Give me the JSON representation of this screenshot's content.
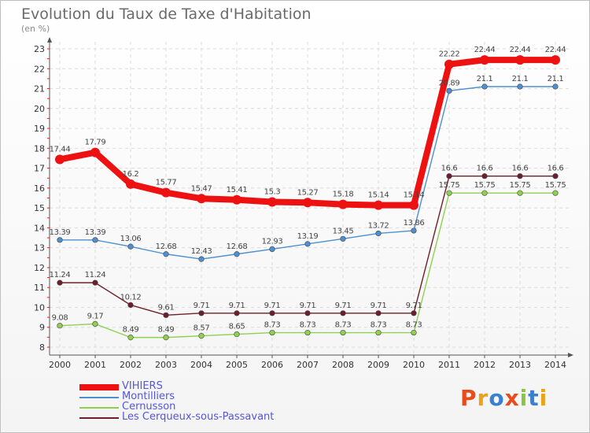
{
  "title": "Evolution du Taux de Taxe d'Habitation",
  "subtitle": "(en %)",
  "brand": {
    "text": "Proxiti",
    "letter_colors": [
      "#e84c1c",
      "#e8a21c",
      "#3a7fd0",
      "#e84c1c",
      "#8bc53f",
      "#3a7fd0",
      "#e8a21c"
    ]
  },
  "chart_data": {
    "type": "line",
    "x": [
      "2000",
      "2001",
      "2002",
      "2003",
      "2004",
      "2005",
      "2006",
      "2007",
      "2008",
      "2009",
      "2010",
      "2011",
      "2012",
      "2013",
      "2014"
    ],
    "ylim": [
      8,
      23
    ],
    "yticks": [
      8,
      9,
      10,
      11,
      12,
      13,
      14,
      15,
      16,
      17,
      18,
      19,
      20,
      21,
      22,
      23
    ],
    "series": [
      {
        "name": "VIHIERS",
        "color": "#ee1111",
        "emphasis": true,
        "values": [
          17.44,
          17.79,
          16.2,
          15.77,
          15.47,
          15.41,
          15.3,
          15.27,
          15.18,
          15.14,
          15.14,
          22.22,
          22.44,
          22.44,
          22.44
        ],
        "labels": [
          "17.44",
          "17.79",
          "16.2",
          "15.77",
          "15.47",
          "15.41",
          "15.3",
          "15.27",
          "15.18",
          "15.14",
          "15.14",
          "22.22",
          "22.44",
          "22.44",
          "22.44"
        ]
      },
      {
        "name": "Montilliers",
        "color": "#4d8fd1",
        "values": [
          13.39,
          13.39,
          13.06,
          12.68,
          12.43,
          12.68,
          12.93,
          13.19,
          13.45,
          13.72,
          13.86,
          20.89,
          21.1,
          21.1,
          21.1
        ],
        "labels": [
          "13.39",
          "13.39",
          "13.06",
          "12.68",
          "12.43",
          "12.68",
          "12.93",
          "13.19",
          "13.45",
          "13.72",
          "13.86",
          "20.89",
          "21.1",
          "21.1",
          "21.1"
        ]
      },
      {
        "name": "Cernusson",
        "color": "#8fd050",
        "values": [
          9.08,
          9.17,
          8.49,
          8.49,
          8.57,
          8.65,
          8.73,
          8.73,
          8.73,
          8.73,
          8.73,
          15.75,
          15.75,
          15.75,
          15.75
        ],
        "labels": [
          "9.08",
          "9.17",
          "8.49",
          "8.49",
          "8.57",
          "8.65",
          "8.73",
          "8.73",
          "8.73",
          "8.73",
          "8.73",
          "15.75",
          "15.75",
          "15.75",
          "15.75"
        ]
      },
      {
        "name": "Les Cerqueux-sous-Passavant",
        "color": "#6e1e2a",
        "values": [
          11.24,
          11.24,
          10.12,
          9.61,
          9.71,
          9.71,
          9.71,
          9.71,
          9.71,
          9.71,
          9.71,
          16.6,
          16.6,
          16.6,
          16.6
        ],
        "labels": [
          "11.24",
          "11.24",
          "10.12",
          "9.61",
          "9.71",
          "9.71",
          "9.71",
          "9.71",
          "9.71",
          "9.71",
          "9.71",
          "16.6",
          "16.6",
          "16.6",
          "16.6"
        ]
      }
    ]
  }
}
